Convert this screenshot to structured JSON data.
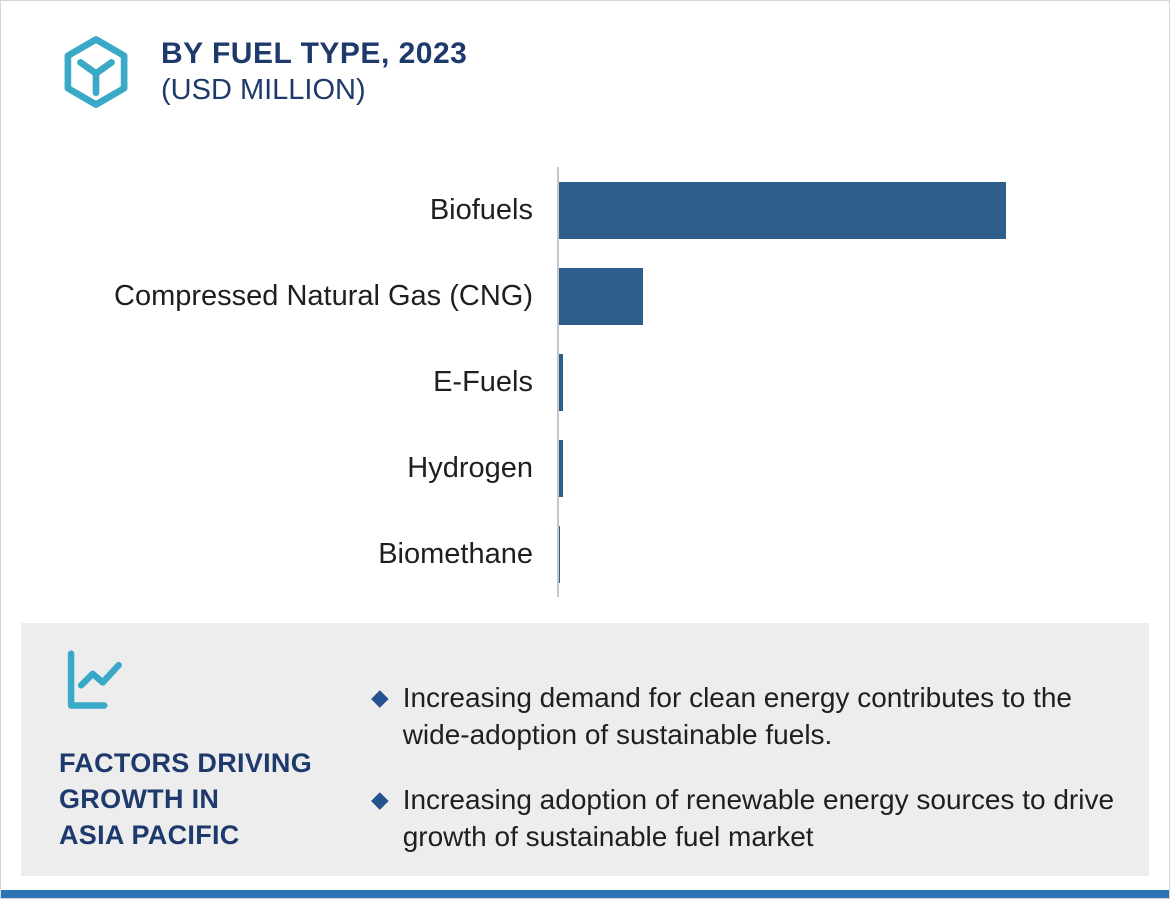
{
  "header": {
    "title_line1": "BY FUEL TYPE, 2023",
    "title_line2": "(USD MILLION)"
  },
  "chart_data": {
    "type": "bar",
    "orientation": "horizontal",
    "title": "BY FUEL TYPE, 2023 (USD MILLION)",
    "categories": [
      "Biofuels",
      "Compressed Natural Gas (CNG)",
      "E-Fuels",
      "Hydrogen",
      "Biomethane"
    ],
    "values": [
      455,
      85,
      4,
      4,
      1
    ],
    "xlim": [
      0,
      600
    ],
    "grid": false,
    "legend": false,
    "value_labels_shown": false
  },
  "factors": {
    "heading_lines": [
      "FACTORS DRIVING",
      "GROWTH IN",
      "ASIA PACIFIC"
    ],
    "bullets": [
      "Increasing demand for clean energy contributes to the wide-adoption of sustainable fuels.",
      "Increasing adoption of renewable energy sources to drive growth of sustainable fuel market"
    ]
  },
  "colors": {
    "bar": "#2e5f8c",
    "accent": "#3aa9c8",
    "heading": "#1e3a6d",
    "panel": "#ededed",
    "diamond": "#24538f",
    "footer": "#2e73b5",
    "axis": "#c4c6c9",
    "text": "#1f1f1f"
  }
}
